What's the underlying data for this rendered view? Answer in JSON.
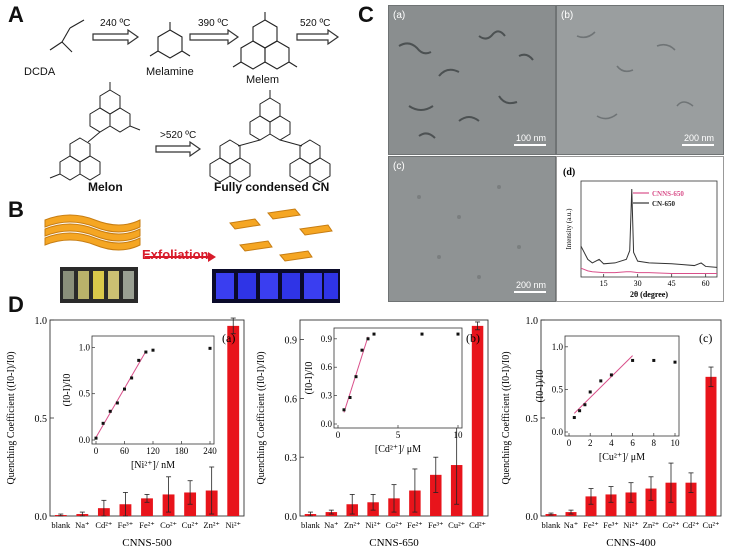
{
  "panels": {
    "a": "A",
    "b": "B",
    "c": "C",
    "d": "D"
  },
  "scheme": {
    "molecules": [
      "DCDA",
      "Melamine",
      "Melem",
      "Melon",
      "Fully condensed CN"
    ],
    "temps": [
      "240 ºC",
      "390 ºC",
      "520 ºC",
      ">520 ºC"
    ]
  },
  "exfoliation": {
    "label": "Exfoliation"
  },
  "tem": [
    {
      "tag": "(a)",
      "scale": "100 nm"
    },
    {
      "tag": "(b)",
      "scale": "200 nm"
    },
    {
      "tag": "(c)",
      "scale": "200 nm"
    }
  ],
  "chart_data": [
    {
      "type": "line",
      "panel": "(d)",
      "xlabel": "2θ (degree)",
      "ylabel": "Intensity (a.u.)",
      "xlim": [
        5,
        65
      ],
      "xticks": [
        15,
        30,
        45,
        60
      ],
      "series": [
        {
          "name": "CNNS-650",
          "color": "#d94f8a",
          "x": [
            5,
            8,
            10,
            15,
            20,
            25,
            27,
            30,
            35,
            45,
            55,
            65
          ],
          "y": [
            0.1,
            0.07,
            0.06,
            0.05,
            0.05,
            0.06,
            0.06,
            0.05,
            0.05,
            0.04,
            0.04,
            0.04
          ]
        },
        {
          "name": "CN-650",
          "color": "#333333",
          "x": [
            5,
            8,
            10,
            13,
            15,
            20,
            25,
            26.5,
            27.4,
            28.2,
            30,
            35,
            45,
            50,
            55,
            58,
            60,
            65
          ],
          "y": [
            0.35,
            0.2,
            0.16,
            0.2,
            0.15,
            0.16,
            0.2,
            0.3,
            1.0,
            0.28,
            0.18,
            0.16,
            0.15,
            0.14,
            0.13,
            0.16,
            0.12,
            0.11
          ]
        }
      ]
    },
    {
      "type": "bar",
      "panel": "(a)",
      "xlabel": "CNNS-500",
      "ylabel": "Quenching Coefficient ((I0-I)/I0)",
      "ylim": [
        0,
        1.0
      ],
      "yticks": [
        "0.0",
        "0.5",
        "1.0"
      ],
      "categories": [
        "blank",
        "Na⁺",
        "Cd²⁺",
        "Fe³⁺",
        "Fe²⁺",
        "Co²⁺",
        "Cu²⁺",
        "Zn²⁺",
        "Ni²⁺"
      ],
      "values": [
        0.005,
        0.01,
        0.04,
        0.06,
        0.09,
        0.11,
        0.12,
        0.13,
        0.97
      ],
      "errors": [
        0.005,
        0.01,
        0.04,
        0.06,
        0.02,
        0.09,
        0.06,
        0.12,
        0.04
      ],
      "inset": {
        "xlabel": "[Ni²⁺]/ nM",
        "ylabel": "(I0-I)/I0",
        "xticks": [
          0,
          60,
          120,
          180,
          240
        ],
        "yticks": [
          "0.0",
          "0.5",
          "1.0"
        ],
        "x": [
          0,
          15,
          30,
          45,
          60,
          75,
          90,
          105,
          120,
          240
        ],
        "y": [
          0.02,
          0.18,
          0.31,
          0.4,
          0.55,
          0.67,
          0.86,
          0.95,
          0.97,
          0.99
        ]
      }
    },
    {
      "type": "bar",
      "panel": "(b)",
      "xlabel": "CNNS-650",
      "ylabel": "Quenching Coefficient ((I0-I)/I0)",
      "ylim": [
        0,
        1.0
      ],
      "yticks": [
        "0.0",
        "0.3",
        "0.6",
        "0.9"
      ],
      "categories": [
        "blank",
        "Na⁺",
        "Zn²⁺",
        "Ni²⁺",
        "Co²⁺",
        "Fe²⁺",
        "Fe³⁺",
        "Cu²⁺",
        "Cd²⁺"
      ],
      "values": [
        0.01,
        0.02,
        0.06,
        0.07,
        0.09,
        0.13,
        0.21,
        0.26,
        0.97
      ],
      "errors": [
        0.01,
        0.01,
        0.05,
        0.04,
        0.07,
        0.11,
        0.09,
        0.2,
        0.02
      ],
      "inset": {
        "xlabel": "[Cd²⁺]/ μM",
        "ylabel": "(I0-I)/I0",
        "xticks": [
          0,
          5,
          10
        ],
        "yticks": [
          "0.0",
          "0.3",
          "0.6",
          "0.9"
        ],
        "x": [
          0.5,
          1,
          1.5,
          2,
          2.5,
          3,
          7,
          10
        ],
        "y": [
          0.15,
          0.28,
          0.5,
          0.78,
          0.9,
          0.95,
          0.95,
          0.95
        ]
      }
    },
    {
      "type": "bar",
      "panel": "(c)",
      "xlabel": "CNNS-400",
      "ylabel": "Quenching Coefficient ((I0-I)/I0)",
      "ylim": [
        0,
        1.0
      ],
      "yticks": [
        "0.0",
        "0.5",
        "1.0"
      ],
      "categories": [
        "blank",
        "Na⁺",
        "Fe²⁺",
        "Fe³⁺",
        "Ni²⁺",
        "Zn²⁺",
        "Co²⁺",
        "Cd²⁺",
        "Cu²⁺"
      ],
      "values": [
        0.01,
        0.02,
        0.1,
        0.11,
        0.12,
        0.14,
        0.17,
        0.17,
        0.71
      ],
      "errors": [
        0.005,
        0.01,
        0.04,
        0.04,
        0.05,
        0.06,
        0.1,
        0.05,
        0.05
      ],
      "inset": {
        "xlabel": "[Cu²⁺]/ μM",
        "ylabel": "(I0-I)/I0",
        "xticks": [
          0,
          2,
          4,
          6,
          8,
          10
        ],
        "yticks": [
          "0.0",
          "0.5",
          "1.0"
        ],
        "x": [
          0.5,
          1,
          1.5,
          2,
          3,
          4,
          6,
          8,
          10
        ],
        "y": [
          0.17,
          0.25,
          0.32,
          0.47,
          0.6,
          0.67,
          0.84,
          0.84,
          0.82
        ]
      }
    }
  ]
}
